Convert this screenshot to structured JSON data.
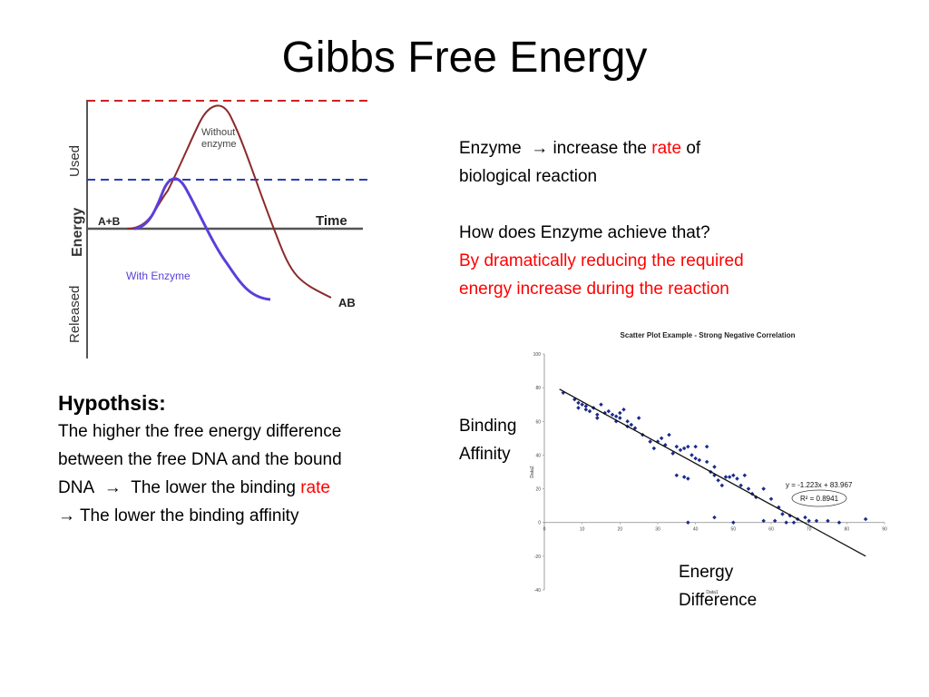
{
  "title": "Gibbs Free Energy",
  "energy_diagram": {
    "ylabel_used": "Used",
    "ylabel_energy": "Energy",
    "ylabel_released": "Released",
    "xlabel": "Time",
    "reactant_label": "A+B",
    "product_label": "AB",
    "without_enzyme_label_1": "Without",
    "without_enzyme_label_2": "enzyme",
    "with_enzyme_label": "With Enzyme",
    "colors": {
      "without": "#8b2a2a",
      "with": "#5b3fd9",
      "dash_top": "#cc2222",
      "dash_mid": "#2a3fb0"
    }
  },
  "enzyme_text": {
    "line1_pre": "Enzyme",
    "arrow": "→",
    "line1_mid": "increase the",
    "line1_red": "rate",
    "line1_post": "of",
    "line2": "biological reaction",
    "question": "How does Enzyme achieve that?",
    "answer_line1": "By dramatically reducing the required",
    "answer_line2": "energy increase during the reaction"
  },
  "hypothesis": {
    "heading": "Hypothsis:",
    "line1": "The higher the free energy difference",
    "line2": "between the free DNA and the bound",
    "line3_pre": "DNA",
    "line3_arrow": "→",
    "line3_mid": "The lower the binding",
    "line3_red": "rate",
    "line4_arrow": "→",
    "line4_text": "The lower the binding  affinity"
  },
  "labels": {
    "binding_1": "Binding",
    "binding_2": "Affinity",
    "energy_1": "Energy",
    "energy_2": "Difference"
  },
  "chart_data": {
    "type": "scatter",
    "title": "Scatter Plot Example - Strong Negative Correlation",
    "xlabel": "Data1",
    "ylabel": "Data2",
    "xlim": [
      0,
      90
    ],
    "ylim": [
      -40,
      100
    ],
    "x_ticks": [
      "0",
      "10",
      "20",
      "30",
      "40",
      "50",
      "60",
      "70",
      "80",
      "90"
    ],
    "y_ticks": [
      "100",
      "80",
      "60",
      "40",
      "20",
      "0",
      "-20",
      "-40"
    ],
    "trendline": {
      "slope": -1.223,
      "intercept": 83.967,
      "x_range": [
        4,
        85
      ]
    },
    "equation": "y = -1.223x + 83.967",
    "r2": "R² = 0.8941",
    "point_color": "#1a2a8c",
    "points": [
      [
        5,
        77
      ],
      [
        8,
        73
      ],
      [
        9,
        71
      ],
      [
        9,
        68
      ],
      [
        10,
        70
      ],
      [
        11,
        69
      ],
      [
        11,
        67
      ],
      [
        12,
        66
      ],
      [
        13,
        68
      ],
      [
        14,
        64
      ],
      [
        14,
        62
      ],
      [
        15,
        70
      ],
      [
        16,
        65
      ],
      [
        17,
        66
      ],
      [
        18,
        64
      ],
      [
        19,
        63
      ],
      [
        19,
        60
      ],
      [
        20,
        65
      ],
      [
        20,
        62
      ],
      [
        21,
        67
      ],
      [
        22,
        60
      ],
      [
        22,
        57
      ],
      [
        23,
        58
      ],
      [
        24,
        56
      ],
      [
        25,
        62
      ],
      [
        26,
        52
      ],
      [
        28,
        48
      ],
      [
        29,
        44
      ],
      [
        30,
        48
      ],
      [
        31,
        50
      ],
      [
        32,
        46
      ],
      [
        33,
        52
      ],
      [
        34,
        41
      ],
      [
        35,
        45
      ],
      [
        35,
        28
      ],
      [
        36,
        43
      ],
      [
        37,
        44
      ],
      [
        37,
        27
      ],
      [
        38,
        45
      ],
      [
        38,
        26
      ],
      [
        39,
        40
      ],
      [
        40,
        45
      ],
      [
        40,
        38
      ],
      [
        41,
        37
      ],
      [
        43,
        45
      ],
      [
        43,
        36
      ],
      [
        44,
        30
      ],
      [
        45,
        33
      ],
      [
        45,
        28
      ],
      [
        46,
        25
      ],
      [
        47,
        22
      ],
      [
        48,
        27
      ],
      [
        49,
        27
      ],
      [
        50,
        28
      ],
      [
        51,
        26
      ],
      [
        52,
        22
      ],
      [
        53,
        28
      ],
      [
        54,
        20
      ],
      [
        55,
        17
      ],
      [
        56,
        15
      ],
      [
        58,
        20
      ],
      [
        60,
        14
      ],
      [
        62,
        9
      ],
      [
        63,
        5
      ],
      [
        65,
        4
      ],
      [
        67,
        2
      ],
      [
        69,
        3
      ],
      [
        72,
        1
      ],
      [
        75,
        1
      ],
      [
        78,
        0
      ],
      [
        85,
        2
      ],
      [
        38,
        0
      ],
      [
        45,
        3
      ],
      [
        50,
        0
      ],
      [
        58,
        1
      ],
      [
        61,
        1
      ],
      [
        64,
        0
      ],
      [
        66,
        0
      ],
      [
        70,
        1
      ]
    ]
  }
}
